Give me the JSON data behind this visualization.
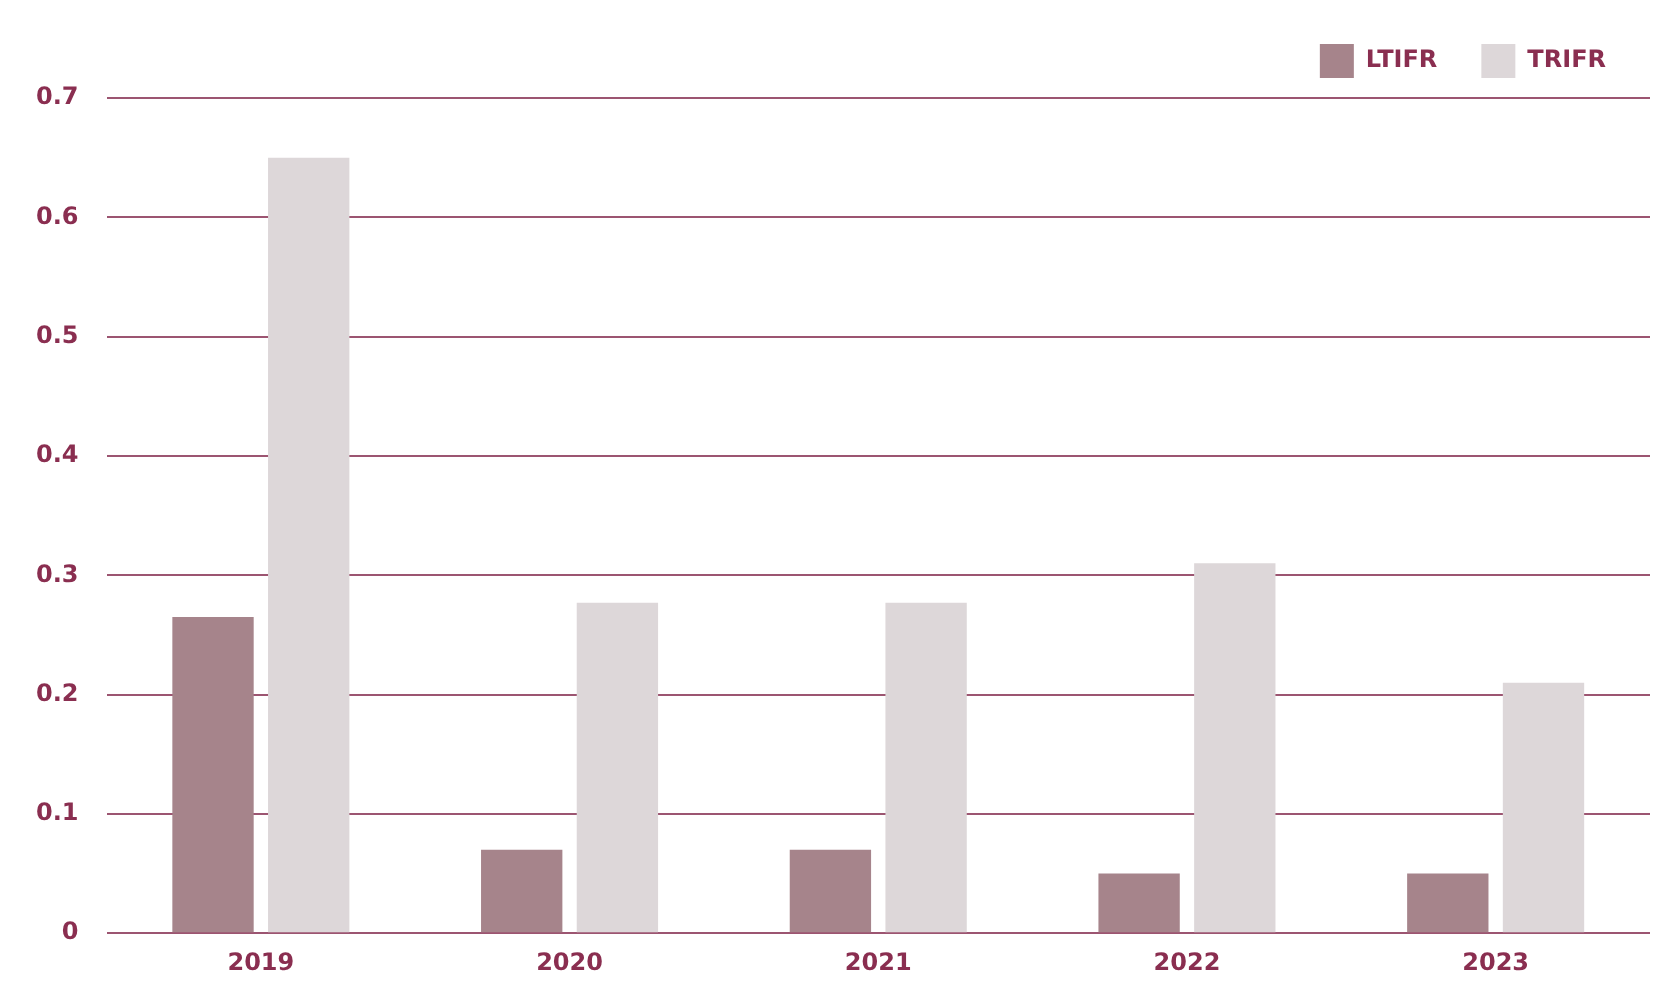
{
  "chart_data": {
    "type": "bar",
    "categories": [
      "2019",
      "2020",
      "2021",
      "2022",
      "2023"
    ],
    "series": [
      {
        "name": "LTIFR",
        "color": "#a6848b",
        "values": [
          0.265,
          0.07,
          0.07,
          0.05,
          0.05
        ]
      },
      {
        "name": "TRIFR",
        "color": "#ddd7d9",
        "values": [
          0.65,
          0.277,
          0.277,
          0.31,
          0.21
        ]
      }
    ],
    "ylim": [
      0,
      0.7
    ],
    "yticks": [
      0,
      0.1,
      0.2,
      0.3,
      0.4,
      0.5,
      0.6,
      0.7
    ],
    "grid": "y",
    "legend": "top right"
  }
}
